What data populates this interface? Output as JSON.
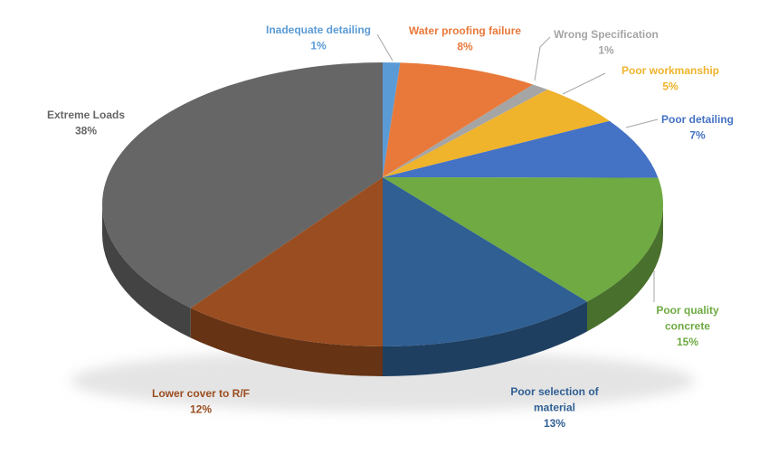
{
  "page": {
    "background": "#ffffff"
  },
  "chart_data": {
    "type": "pie",
    "style": "3d-pie",
    "title": "",
    "legend": "none",
    "direction": "clockwise",
    "start_angle_deg": 0,
    "data_labels": "category name + percentage, outside end",
    "leader_line_color": "#A6A6A6",
    "slices": [
      {
        "label": "Inadequate detailing",
        "label_lines": [
          "Inadequate detailing"
        ],
        "value": 1,
        "pct_text": "1%",
        "color": "#5B9BD5"
      },
      {
        "label": "Water proofing failure",
        "label_lines": [
          "Water proofing failure"
        ],
        "value": 8,
        "pct_text": "8%",
        "color": "#E8793A"
      },
      {
        "label": "Wrong Specification",
        "label_lines": [
          "Wrong Specification"
        ],
        "value": 1,
        "pct_text": "1%",
        "color": "#A5A5A5"
      },
      {
        "label": "Poor workmanship",
        "label_lines": [
          "Poor workmanship"
        ],
        "value": 5,
        "pct_text": "5%",
        "color": "#EFB32C"
      },
      {
        "label": "Poor detailing",
        "label_lines": [
          "Poor detailing"
        ],
        "value": 7,
        "pct_text": "7%",
        "color": "#4472C4"
      },
      {
        "label": "Poor quality concrete",
        "label_lines": [
          "Poor quality",
          "concrete"
        ],
        "value": 15,
        "pct_text": "15%",
        "color": "#6FAA43"
      },
      {
        "label": "Poor selection of material",
        "label_lines": [
          "Poor selection of",
          "material"
        ],
        "value": 13,
        "pct_text": "13%",
        "color": "#2F5F93"
      },
      {
        "label": "Lower cover to R/F",
        "label_lines": [
          "Lower cover to R/F"
        ],
        "value": 12,
        "pct_text": "12%",
        "color": "#9A4D20"
      },
      {
        "label": "Extreme Loads",
        "label_lines": [
          "Extreme Loads"
        ],
        "value": 38,
        "pct_text": "38%",
        "color": "#666666"
      }
    ]
  }
}
